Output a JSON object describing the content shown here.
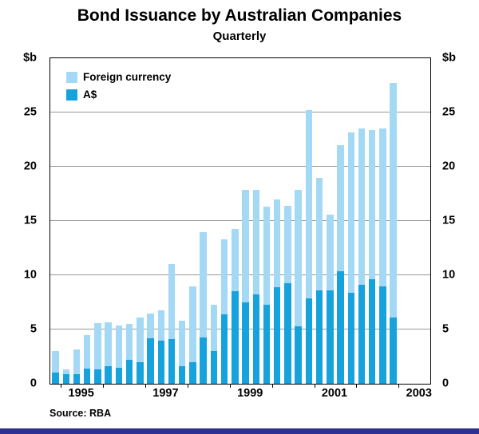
{
  "colors": {
    "foreign_currency": "#a3d9f5",
    "aud": "#16a2dc",
    "gridline": "#999999",
    "footer_bar": "#2e3192"
  },
  "legend": {
    "items": [
      {
        "label": "Foreign currency",
        "color": "#a3d9f5"
      },
      {
        "label": "A$",
        "color": "#16a2dc"
      }
    ]
  },
  "chart_data": {
    "type": "bar",
    "stacked": true,
    "title": "Bond Issuance by Australian Companies",
    "subtitle": "Quarterly",
    "unit": "$b",
    "source": "Source: RBA",
    "ylim": [
      0,
      30
    ],
    "yticks": [
      0,
      5,
      10,
      15,
      20,
      25
    ],
    "gridlines": [
      5,
      10,
      15,
      20,
      25
    ],
    "grid": true,
    "legend_position": "top-left-inside",
    "x_start": "1994 Q4",
    "x_span_quarters": 36,
    "x_year_labels": [
      "1995",
      "1997",
      "1999",
      "2001",
      "2003"
    ],
    "categories": [
      "1994 Q4",
      "1995 Q1",
      "1995 Q2",
      "1995 Q3",
      "1995 Q4",
      "1996 Q1",
      "1996 Q2",
      "1996 Q3",
      "1996 Q4",
      "1997 Q1",
      "1997 Q2",
      "1997 Q3",
      "1997 Q4",
      "1998 Q1",
      "1998 Q2",
      "1998 Q3",
      "1998 Q4",
      "1999 Q1",
      "1999 Q2",
      "1999 Q3",
      "1999 Q4",
      "2000 Q1",
      "2000 Q2",
      "2000 Q3",
      "2000 Q4",
      "2001 Q1",
      "2001 Q2",
      "2001 Q3",
      "2001 Q4",
      "2002 Q1",
      "2002 Q2",
      "2002 Q3",
      "2002 Q4"
    ],
    "series": [
      {
        "name": "A$",
        "color": "#16a2dc",
        "values": [
          1.0,
          0.9,
          0.9,
          1.4,
          1.3,
          1.6,
          1.5,
          2.2,
          2.0,
          4.2,
          4.0,
          4.1,
          1.6,
          2.0,
          4.3,
          3.0,
          6.4,
          8.5,
          7.5,
          8.2,
          7.3,
          8.9,
          9.3,
          5.3,
          7.9,
          8.6,
          8.6,
          10.4,
          8.4,
          9.1,
          9.6,
          9.0,
          6.1
        ]
      },
      {
        "name": "Foreign currency",
        "color": "#a3d9f5",
        "values": [
          2.0,
          0.4,
          2.3,
          3.1,
          4.3,
          4.1,
          3.9,
          3.3,
          4.1,
          2.3,
          2.8,
          6.9,
          4.2,
          7.0,
          9.7,
          4.3,
          6.9,
          5.8,
          10.4,
          9.7,
          9.0,
          8.1,
          7.1,
          12.6,
          17.3,
          10.4,
          7.0,
          11.6,
          14.8,
          14.4,
          13.8,
          14.5,
          21.6
        ]
      }
    ],
    "totals": [
      3.0,
      1.3,
      3.2,
      4.5,
      5.6,
      5.7,
      5.4,
      5.5,
      6.1,
      6.5,
      6.8,
      11.0,
      5.8,
      9.0,
      14.0,
      7.3,
      13.3,
      14.3,
      17.9,
      17.9,
      16.3,
      17.0,
      16.4,
      17.9,
      25.2,
      19.0,
      15.6,
      22.0,
      23.2,
      23.5,
      23.4,
      23.5,
      27.7
    ]
  }
}
